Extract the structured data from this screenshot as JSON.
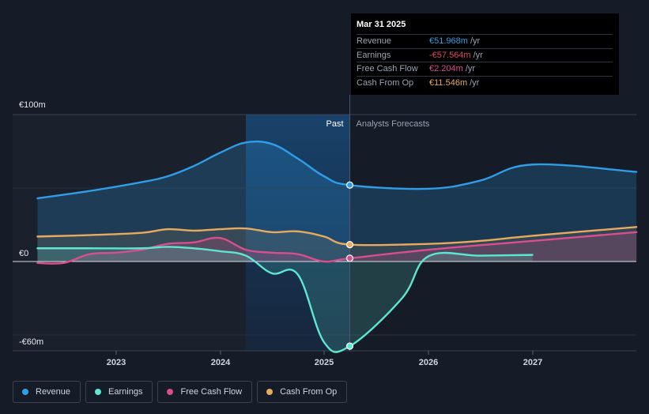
{
  "chart_data": {
    "type": "line",
    "x_ticks": [
      "2023",
      "2024",
      "2025",
      "2026",
      "2027"
    ],
    "y_ticks": [
      "€100m",
      "€0",
      "-€60m"
    ],
    "ylim": [
      -60,
      100
    ],
    "currency_unit": "€m",
    "past_label": "Past",
    "forecast_label": "Analysts Forecasts",
    "highlight_date": "2025-03-31",
    "series": [
      {
        "name": "Revenue",
        "color": "#2f9ee6",
        "points": [
          [
            "2022-03-31",
            43
          ],
          [
            "2022-09-30",
            48
          ],
          [
            "2023-03-31",
            54
          ],
          [
            "2023-06-30",
            58
          ],
          [
            "2023-09-30",
            65
          ],
          [
            "2023-12-31",
            74
          ],
          [
            "2024-03-31",
            81
          ],
          [
            "2024-06-30",
            80
          ],
          [
            "2024-09-30",
            70
          ],
          [
            "2024-12-31",
            58
          ],
          [
            "2025-03-31",
            52
          ],
          [
            "2025-12-31",
            49.5
          ],
          [
            "2026-06-30",
            55
          ],
          [
            "2026-12-31",
            66
          ],
          [
            "2027-12-31",
            61
          ]
        ]
      },
      {
        "name": "Earnings",
        "color": "#5ee6d0",
        "points": [
          [
            "2022-03-31",
            9
          ],
          [
            "2022-09-30",
            9
          ],
          [
            "2023-03-31",
            9
          ],
          [
            "2023-06-30",
            10
          ],
          [
            "2023-09-30",
            9
          ],
          [
            "2023-12-31",
            7
          ],
          [
            "2024-03-31",
            4
          ],
          [
            "2024-06-30",
            -8
          ],
          [
            "2024-09-30",
            -9
          ],
          [
            "2024-12-31",
            -55
          ],
          [
            "2025-03-31",
            -57.6
          ],
          [
            "2025-09-30",
            -25
          ],
          [
            "2025-12-31",
            3.5
          ],
          [
            "2026-06-30",
            4
          ],
          [
            "2026-12-31",
            4.5
          ]
        ]
      },
      {
        "name": "Free Cash Flow",
        "color": "#d64f8e",
        "points": [
          [
            "2022-03-31",
            -1
          ],
          [
            "2022-06-30",
            -1
          ],
          [
            "2022-09-30",
            5
          ],
          [
            "2022-12-31",
            6
          ],
          [
            "2023-03-31",
            8
          ],
          [
            "2023-06-30",
            12
          ],
          [
            "2023-09-30",
            13
          ],
          [
            "2023-12-31",
            16
          ],
          [
            "2024-03-31",
            8
          ],
          [
            "2024-06-30",
            6
          ],
          [
            "2024-09-30",
            5
          ],
          [
            "2024-12-31",
            0
          ],
          [
            "2025-03-31",
            2.2
          ],
          [
            "2025-12-31",
            8
          ],
          [
            "2026-12-31",
            14
          ],
          [
            "2027-12-31",
            20
          ]
        ]
      },
      {
        "name": "Cash From Op",
        "color": "#e8aa5f",
        "points": [
          [
            "2022-03-31",
            17
          ],
          [
            "2022-09-30",
            18
          ],
          [
            "2023-03-31",
            19.5
          ],
          [
            "2023-06-30",
            22
          ],
          [
            "2023-09-30",
            21
          ],
          [
            "2023-12-31",
            22
          ],
          [
            "2024-03-31",
            22.5
          ],
          [
            "2024-06-30",
            20
          ],
          [
            "2024-09-30",
            20.5
          ],
          [
            "2024-12-31",
            17
          ],
          [
            "2025-03-31",
            11.5
          ],
          [
            "2025-12-31",
            12
          ],
          [
            "2026-06-30",
            14
          ],
          [
            "2026-12-31",
            17.5
          ],
          [
            "2027-12-31",
            23.5
          ]
        ]
      }
    ]
  },
  "tooltip": {
    "date": "Mar 31 2025",
    "rows": [
      {
        "label": "Revenue",
        "value": "€51.968m",
        "unit": "/yr",
        "color": "#2f9ee6"
      },
      {
        "label": "Earnings",
        "value": "-€57.564m",
        "unit": "/yr",
        "color": "#e0445f"
      },
      {
        "label": "Free Cash Flow",
        "value": "€2.204m",
        "unit": "/yr",
        "color": "#d64f8e"
      },
      {
        "label": "Cash From Op",
        "value": "€11.546m",
        "unit": "/yr",
        "color": "#e8aa5f"
      }
    ]
  },
  "legend": [
    {
      "label": "Revenue",
      "color": "#2f9ee6"
    },
    {
      "label": "Earnings",
      "color": "#5ee6d0"
    },
    {
      "label": "Free Cash Flow",
      "color": "#d64f8e"
    },
    {
      "label": "Cash From Op",
      "color": "#e8aa5f"
    }
  ]
}
